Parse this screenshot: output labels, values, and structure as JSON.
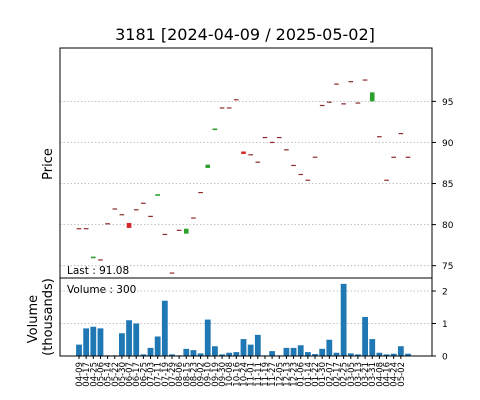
{
  "chart_data": {
    "type": "candlestick",
    "title": "3181   [2024-04-09 / 2025-05-02]",
    "price_panel": {
      "ylabel": "Price",
      "ylim": [
        73.5,
        101.5
      ],
      "yticks": [
        75,
        80,
        85,
        90,
        95
      ],
      "grid": true,
      "annotation": "Last : 91.08"
    },
    "volume_panel": {
      "ylabel": "Volume\n(thousands)",
      "ylim": [
        0,
        2.4
      ],
      "yticks": [
        0,
        1,
        2
      ],
      "grid": true,
      "annotation": "Volume : 300"
    },
    "x_tick_labels": [
      "04-09",
      "04-17",
      "04-25",
      "05-06",
      "05-14",
      "05-22",
      "05-30",
      "06-07",
      "06-17",
      "06-25",
      "07-03",
      "07-11",
      "07-19",
      "07-29",
      "08-06",
      "08-15",
      "08-23",
      "09-02",
      "09-10",
      "09-19",
      "09-30",
      "10-08",
      "10-16",
      "10-24",
      "11-01",
      "11-11",
      "11-19",
      "11-27",
      "12-05",
      "12-13",
      "12-23",
      "01-06",
      "01-14",
      "01-22",
      "01-30",
      "02-07",
      "02-17",
      "02-25",
      "03-05",
      "03-13",
      "03-21",
      "03-31",
      "04-08",
      "04-16",
      "04-24",
      "05-02"
    ],
    "candles": [
      {
        "x": "04-09",
        "open": 79.4,
        "close": 79.5,
        "volume": 0.35
      },
      {
        "x": "04-17",
        "open": 79.5,
        "close": 79.5,
        "volume": 0.85
      },
      {
        "x": "04-25",
        "open": 75.9,
        "close": 76.1,
        "volume": 0.9
      },
      {
        "x": "05-06",
        "open": 75.7,
        "close": 75.7,
        "volume": 0.85
      },
      {
        "x": "05-14",
        "open": 80.1,
        "close": 80.1,
        "volume": 0.02
      },
      {
        "x": "05-22",
        "open": 81.9,
        "close": 81.9,
        "volume": 0.02
      },
      {
        "x": "05-30",
        "open": 81.2,
        "close": 81.2,
        "volume": 0.7
      },
      {
        "x": "06-07",
        "open": 80.2,
        "close": 79.6,
        "volume": 1.1
      },
      {
        "x": "06-17",
        "open": 81.8,
        "close": 81.8,
        "volume": 1.0
      },
      {
        "x": "06-25",
        "open": 82.6,
        "close": 82.6,
        "volume": 0.05
      },
      {
        "x": "07-03",
        "open": 81.0,
        "close": 81.0,
        "volume": 0.25
      },
      {
        "x": "07-11",
        "open": 83.5,
        "close": 83.7,
        "volume": 0.6
      },
      {
        "x": "07-19",
        "open": 78.8,
        "close": 78.8,
        "volume": 1.7
      },
      {
        "x": "07-29",
        "open": 74.1,
        "close": 74.1,
        "volume": 0.05
      },
      {
        "x": "08-06",
        "open": 79.3,
        "close": 79.3,
        "volume": 0.02
      },
      {
        "x": "08-15",
        "open": 78.9,
        "close": 79.5,
        "volume": 0.22
      },
      {
        "x": "08-23",
        "open": 80.8,
        "close": 80.8,
        "volume": 0.18
      },
      {
        "x": "09-02",
        "open": 83.9,
        "close": 83.9,
        "volume": 0.08
      },
      {
        "x": "09-10",
        "open": 86.9,
        "close": 87.3,
        "volume": 1.12
      },
      {
        "x": "09-19",
        "open": 91.5,
        "close": 91.7,
        "volume": 0.3
      },
      {
        "x": "09-30",
        "open": 94.2,
        "close": 94.2,
        "volume": 0.05
      },
      {
        "x": "10-08",
        "open": 94.2,
        "close": 94.2,
        "volume": 0.1
      },
      {
        "x": "10-16",
        "open": 95.2,
        "close": 95.2,
        "volume": 0.12
      },
      {
        "x": "10-24",
        "open": 88.9,
        "close": 88.6,
        "volume": 0.52
      },
      {
        "x": "11-01",
        "open": 88.5,
        "close": 88.5,
        "volume": 0.35
      },
      {
        "x": "11-11",
        "open": 87.6,
        "close": 87.6,
        "volume": 0.65
      },
      {
        "x": "11-19",
        "open": 90.6,
        "close": 90.6,
        "volume": 0.02
      },
      {
        "x": "11-27",
        "open": 90.0,
        "close": 90.0,
        "volume": 0.15
      },
      {
        "x": "12-05",
        "open": 90.6,
        "close": 90.6,
        "volume": 0.02
      },
      {
        "x": "12-13",
        "open": 89.1,
        "close": 89.1,
        "volume": 0.25
      },
      {
        "x": "12-23",
        "open": 87.2,
        "close": 87.2,
        "volume": 0.25
      },
      {
        "x": "01-06",
        "open": 86.1,
        "close": 86.1,
        "volume": 0.33
      },
      {
        "x": "01-14",
        "open": 85.4,
        "close": 85.4,
        "volume": 0.12
      },
      {
        "x": "01-22",
        "open": 88.2,
        "close": 88.2,
        "volume": 0.06
      },
      {
        "x": "01-30",
        "open": 94.5,
        "close": 94.5,
        "volume": 0.22
      },
      {
        "x": "02-07",
        "open": 94.9,
        "close": 94.9,
        "volume": 0.5
      },
      {
        "x": "02-17",
        "open": 97.1,
        "close": 97.1,
        "volume": 0.1
      },
      {
        "x": "02-25",
        "open": 94.7,
        "close": 94.7,
        "volume": 2.22
      },
      {
        "x": "03-05",
        "open": 97.4,
        "close": 97.4,
        "volume": 0.08
      },
      {
        "x": "03-13",
        "open": 94.8,
        "close": 94.8,
        "volume": 0.05
      },
      {
        "x": "03-21",
        "open": 97.6,
        "close": 97.6,
        "volume": 1.2
      },
      {
        "x": "03-31",
        "open": 95.0,
        "close": 96.1,
        "volume": 0.52
      },
      {
        "x": "04-08",
        "open": 90.7,
        "close": 90.7,
        "volume": 0.1
      },
      {
        "x": "04-16",
        "open": 85.4,
        "close": 85.4,
        "volume": 0.05
      },
      {
        "x": "04-24",
        "open": 88.2,
        "close": 88.2,
        "volume": 0.07
      },
      {
        "x": "05-02",
        "open": 91.08,
        "close": 91.08,
        "volume": 0.3
      }
    ],
    "candles_extra": [
      {
        "open": 88.2,
        "close": 88.2,
        "volume": 0.07
      }
    ],
    "colors": {
      "up": "#2ca02c",
      "down": "#d62728",
      "doji_up": "#8b2a2a",
      "volume": "#1f77b4"
    }
  }
}
